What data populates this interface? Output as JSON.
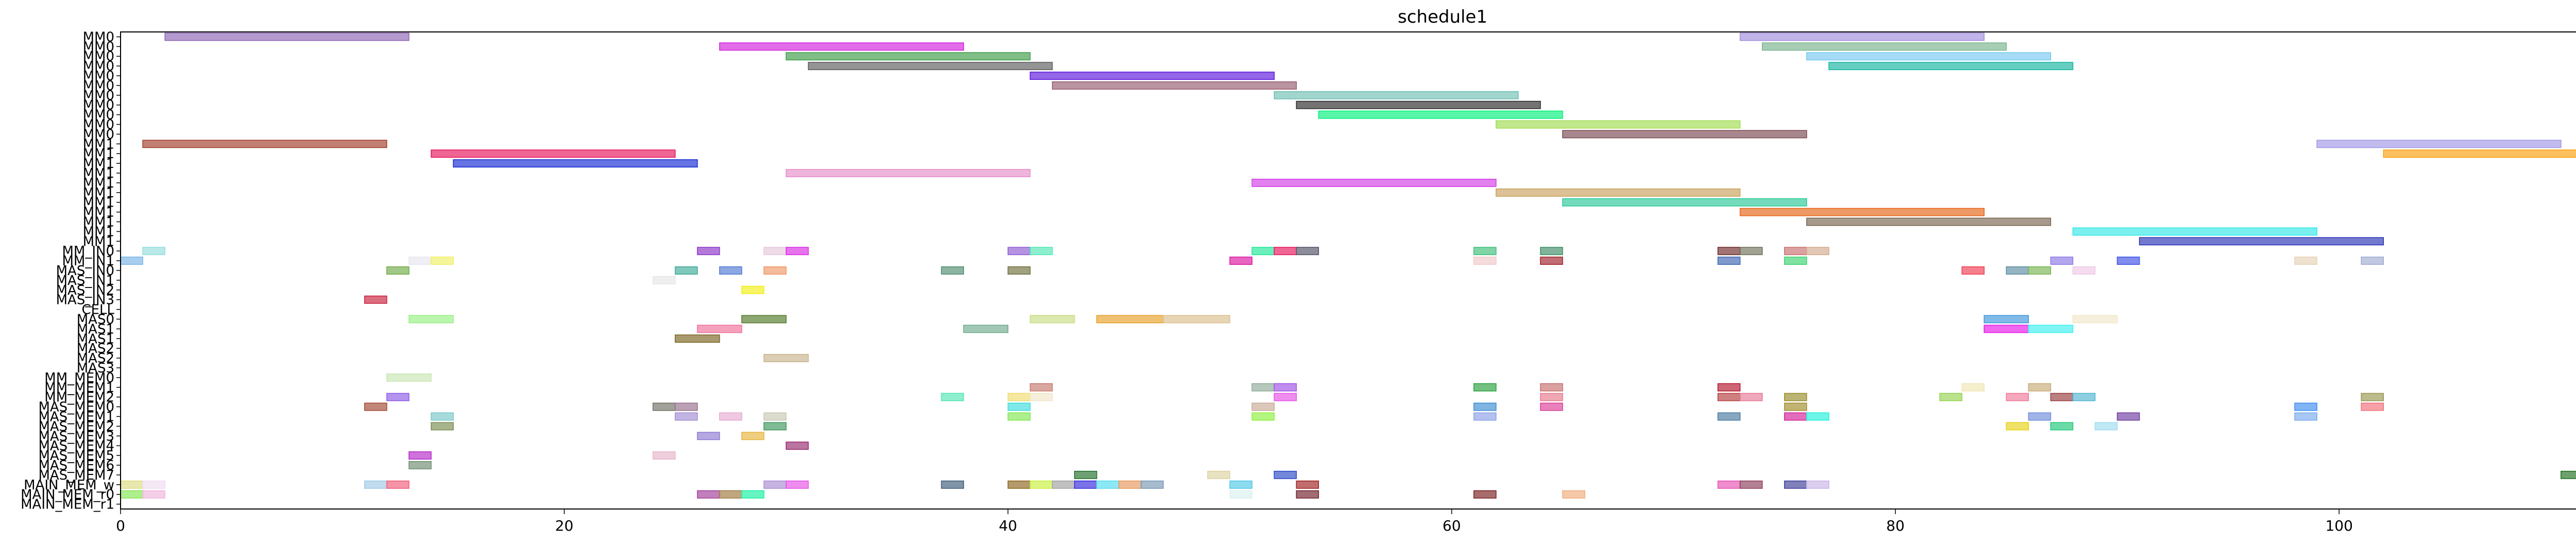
{
  "chart_data": {
    "type": "gantt",
    "title": "schedule1",
    "xlabel": "",
    "ylabel": "",
    "xlim": [
      0,
      113
    ],
    "xticks": [
      0,
      20,
      40,
      60,
      80,
      100
    ],
    "grid": false,
    "rows": [
      "MM0",
      "MM0",
      "MM0",
      "MM0",
      "MM0",
      "MM0",
      "MM0",
      "MM0",
      "MM0",
      "MM0",
      "MM0",
      "MM1",
      "MM1",
      "MM1",
      "MM1",
      "MM1",
      "MM1",
      "MM1",
      "MM1",
      "MM1",
      "MM1",
      "MM1",
      "MM_IN0",
      "MM_IN1",
      "MAS_IN0",
      "MAS_IN1",
      "MAS_IN2",
      "MAS_IN3",
      "CELL",
      "MAS0",
      "MAS1",
      "MAS1",
      "MAS2",
      "MAS2",
      "MAS3",
      "MM_MEM0",
      "MM_MEM1",
      "MM_MEM2",
      "MAS_MEM0",
      "MAS_MEM1",
      "MAS_MEM2",
      "MAS_MEM3",
      "MAS_MEM4",
      "MAS_MEM5",
      "MAS_MEM6",
      "MAS_MEM7",
      "MAIN_MEM_w",
      "MAIN_MEM_r0",
      "MAIN_MEM_r1"
    ],
    "tasks": [
      {
        "row": 0,
        "start": 2,
        "end": 13,
        "color": "#8c64b4"
      },
      {
        "row": 0,
        "start": 73,
        "end": 84,
        "color": "#a08cdc"
      },
      {
        "row": 1,
        "start": 27,
        "end": 38,
        "color": "#d21edc"
      },
      {
        "row": 1,
        "start": 74,
        "end": 85,
        "color": "#78b48c"
      },
      {
        "row": 2,
        "start": 30,
        "end": 41,
        "color": "#3c9b46"
      },
      {
        "row": 2,
        "start": 76,
        "end": 87,
        "color": "#78c8f0"
      },
      {
        "row": 3,
        "start": 31,
        "end": 42,
        "color": "#5a5a5a"
      },
      {
        "row": 3,
        "start": 77,
        "end": 88,
        "color": "#14b4a0"
      },
      {
        "row": 4,
        "start": 41,
        "end": 52,
        "color": "#5a14dc"
      },
      {
        "row": 5,
        "start": 42,
        "end": 53,
        "color": "#965a6e"
      },
      {
        "row": 6,
        "start": 52,
        "end": 63,
        "color": "#6ebeb4"
      },
      {
        "row": 7,
        "start": 53,
        "end": 64,
        "color": "#282828"
      },
      {
        "row": 8,
        "start": 54,
        "end": 65,
        "color": "#00f07a"
      },
      {
        "row": 9,
        "start": 62,
        "end": 73,
        "color": "#a0dc50"
      },
      {
        "row": 10,
        "start": 65,
        "end": 76,
        "color": "#784650"
      },
      {
        "row": 11,
        "start": 1,
        "end": 12,
        "color": "#a03c28"
      },
      {
        "row": 11,
        "start": 99,
        "end": 110,
        "color": "#a096e6"
      },
      {
        "row": 12,
        "start": 14,
        "end": 25,
        "color": "#e6145a"
      },
      {
        "row": 12,
        "start": 102,
        "end": 113,
        "color": "#fa9e0a"
      },
      {
        "row": 13,
        "start": 15,
        "end": 26,
        "color": "#1428d2"
      },
      {
        "row": 14,
        "start": 30,
        "end": 41,
        "color": "#e68cc8"
      },
      {
        "row": 15,
        "start": 51,
        "end": 62,
        "color": "#d23ce6"
      },
      {
        "row": 16,
        "start": 62,
        "end": 73,
        "color": "#c8a05a"
      },
      {
        "row": 17,
        "start": 65,
        "end": 76,
        "color": "#28c896"
      },
      {
        "row": 18,
        "start": 73,
        "end": 84,
        "color": "#e66414"
      },
      {
        "row": 19,
        "start": 76,
        "end": 87,
        "color": "#786450"
      },
      {
        "row": 20,
        "start": 88,
        "end": 99,
        "color": "#32e6e6"
      },
      {
        "row": 21,
        "start": 91,
        "end": 102,
        "color": "#2832b4"
      },
      {
        "row": 22,
        "start": 1,
        "end": 2,
        "color": "#96dcdc"
      },
      {
        "row": 22,
        "start": 26,
        "end": 27,
        "color": "#8c32c8"
      },
      {
        "row": 22,
        "start": 29,
        "end": 30,
        "color": "#e6c8dc"
      },
      {
        "row": 22,
        "start": 30,
        "end": 31,
        "color": "#dc28e6"
      },
      {
        "row": 22,
        "start": 40,
        "end": 41,
        "color": "#8c5ad2"
      },
      {
        "row": 22,
        "start": 41,
        "end": 42,
        "color": "#50e6b4"
      },
      {
        "row": 22,
        "start": 51,
        "end": 52,
        "color": "#1ee696"
      },
      {
        "row": 22,
        "start": 52,
        "end": 53,
        "color": "#e6145a"
      },
      {
        "row": 22,
        "start": 53,
        "end": 54,
        "color": "#505064"
      },
      {
        "row": 22,
        "start": 61,
        "end": 62,
        "color": "#3cbe78"
      },
      {
        "row": 22,
        "start": 64,
        "end": 65,
        "color": "#3c8c64"
      },
      {
        "row": 22,
        "start": 72,
        "end": 73,
        "color": "#6e2828"
      },
      {
        "row": 22,
        "start": 73,
        "end": 74,
        "color": "#6e6e5a"
      },
      {
        "row": 22,
        "start": 75,
        "end": 76,
        "color": "#c86e6e"
      },
      {
        "row": 22,
        "start": 76,
        "end": 77,
        "color": "#d2aa8c"
      },
      {
        "row": 23,
        "start": 0,
        "end": 1,
        "color": "#78b4e6"
      },
      {
        "row": 23,
        "start": 13,
        "end": 14,
        "color": "#e6e6f0"
      },
      {
        "row": 23,
        "start": 14,
        "end": 15,
        "color": "#f0f064"
      },
      {
        "row": 23,
        "start": 50,
        "end": 51,
        "color": "#dc14a0"
      },
      {
        "row": 23,
        "start": 61,
        "end": 62,
        "color": "#f0c8c8"
      },
      {
        "row": 23,
        "start": 64,
        "end": 65,
        "color": "#a01e28"
      },
      {
        "row": 23,
        "start": 72,
        "end": 73,
        "color": "#3c64b4"
      },
      {
        "row": 23,
        "start": 75,
        "end": 76,
        "color": "#3cd26e"
      },
      {
        "row": 23,
        "start": 87,
        "end": 88,
        "color": "#8c78e6"
      },
      {
        "row": 23,
        "start": 90,
        "end": 91,
        "color": "#3c50e6"
      },
      {
        "row": 23,
        "start": 98,
        "end": 99,
        "color": "#e6d2b4"
      },
      {
        "row": 23,
        "start": 101,
        "end": 102,
        "color": "#a0aad2"
      },
      {
        "row": 24,
        "start": 12,
        "end": 13,
        "color": "#6eaa46"
      },
      {
        "row": 24,
        "start": 25,
        "end": 26,
        "color": "#3caa96"
      },
      {
        "row": 24,
        "start": 27,
        "end": 28,
        "color": "#5078d2"
      },
      {
        "row": 24,
        "start": 29,
        "end": 30,
        "color": "#f09664"
      },
      {
        "row": 24,
        "start": 37,
        "end": 38,
        "color": "#508c6e"
      },
      {
        "row": 24,
        "start": 40,
        "end": 41,
        "color": "#6e6e3c"
      },
      {
        "row": 24,
        "start": 83,
        "end": 84,
        "color": "#f03c50"
      },
      {
        "row": 24,
        "start": 85,
        "end": 86,
        "color": "#5a8ca0"
      },
      {
        "row": 24,
        "start": 86,
        "end": 87,
        "color": "#78b450"
      },
      {
        "row": 24,
        "start": 88,
        "end": 89,
        "color": "#f0c8e6"
      },
      {
        "row": 25,
        "start": 24,
        "end": 25,
        "color": "#e6e6e6"
      },
      {
        "row": 26,
        "start": 28,
        "end": 29,
        "color": "#f0f014"
      },
      {
        "row": 27,
        "start": 11,
        "end": 12,
        "color": "#c81e3c"
      },
      {
        "row": 29,
        "start": 13,
        "end": 15,
        "color": "#96f082"
      },
      {
        "row": 29,
        "start": 28,
        "end": 30,
        "color": "#507828"
      },
      {
        "row": 29,
        "start": 41,
        "end": 43,
        "color": "#c8dc82"
      },
      {
        "row": 29,
        "start": 44,
        "end": 47,
        "color": "#e6a028"
      },
      {
        "row": 29,
        "start": 47,
        "end": 50,
        "color": "#dcbe8c"
      },
      {
        "row": 29,
        "start": 84,
        "end": 86,
        "color": "#3c96dc"
      },
      {
        "row": 29,
        "start": 88,
        "end": 90,
        "color": "#f0e6c8"
      },
      {
        "row": 30,
        "start": 26,
        "end": 28,
        "color": "#f06e96"
      },
      {
        "row": 30,
        "start": 38,
        "end": 40,
        "color": "#6eaa8c"
      },
      {
        "row": 30,
        "start": 84,
        "end": 86,
        "color": "#e614e6"
      },
      {
        "row": 30,
        "start": 86,
        "end": 88,
        "color": "#3cf0f0"
      },
      {
        "row": 31,
        "start": 25,
        "end": 27,
        "color": "#7a641e"
      },
      {
        "row": 33,
        "start": 29,
        "end": 31,
        "color": "#c8b48c"
      },
      {
        "row": 35,
        "start": 12,
        "end": 14,
        "color": "#c8e6b4"
      },
      {
        "row": 36,
        "start": 41,
        "end": 42,
        "color": "#c8786e"
      },
      {
        "row": 36,
        "start": 51,
        "end": 52,
        "color": "#8caa96"
      },
      {
        "row": 36,
        "start": 52,
        "end": 53,
        "color": "#a050e6"
      },
      {
        "row": 36,
        "start": 61,
        "end": 62,
        "color": "#28a03c"
      },
      {
        "row": 36,
        "start": 64,
        "end": 65,
        "color": "#c86e6e"
      },
      {
        "row": 36,
        "start": 72,
        "end": 73,
        "color": "#b4142d"
      },
      {
        "row": 36,
        "start": 83,
        "end": 84,
        "color": "#f0e6b4"
      },
      {
        "row": 36,
        "start": 86,
        "end": 87,
        "color": "#c8aa78"
      },
      {
        "row": 37,
        "start": 12,
        "end": 13,
        "color": "#8c5ae6"
      },
      {
        "row": 37,
        "start": 37,
        "end": 38,
        "color": "#50e6b4"
      },
      {
        "row": 37,
        "start": 40,
        "end": 41,
        "color": "#f0dc6e"
      },
      {
        "row": 37,
        "start": 41,
        "end": 42,
        "color": "#f0e6c8"
      },
      {
        "row": 37,
        "start": 52,
        "end": 53,
        "color": "#e650e6"
      },
      {
        "row": 37,
        "start": 64,
        "end": 65,
        "color": "#e6788c"
      },
      {
        "row": 37,
        "start": 72,
        "end": 73,
        "color": "#b43c3c"
      },
      {
        "row": 37,
        "start": 73,
        "end": 74,
        "color": "#e67896"
      },
      {
        "row": 37,
        "start": 75,
        "end": 76,
        "color": "#968c28"
      },
      {
        "row": 37,
        "start": 82,
        "end": 83,
        "color": "#96d250"
      },
      {
        "row": 37,
        "start": 85,
        "end": 86,
        "color": "#f07896"
      },
      {
        "row": 37,
        "start": 87,
        "end": 88,
        "color": "#963c3c"
      },
      {
        "row": 37,
        "start": 88,
        "end": 89,
        "color": "#50b4d2"
      },
      {
        "row": 37,
        "start": 101,
        "end": 102,
        "color": "#969650"
      },
      {
        "row": 38,
        "start": 11,
        "end": 12,
        "color": "#a04632"
      },
      {
        "row": 38,
        "start": 24,
        "end": 25,
        "color": "#6e6e64"
      },
      {
        "row": 38,
        "start": 25,
        "end": 26,
        "color": "#966e8c"
      },
      {
        "row": 38,
        "start": 40,
        "end": 41,
        "color": "#3cdcdc"
      },
      {
        "row": 38,
        "start": 51,
        "end": 52,
        "color": "#c8aa96"
      },
      {
        "row": 38,
        "start": 61,
        "end": 62,
        "color": "#3c8cd2"
      },
      {
        "row": 38,
        "start": 64,
        "end": 65,
        "color": "#dc3c96"
      },
      {
        "row": 38,
        "start": 75,
        "end": 76,
        "color": "#a08c28"
      },
      {
        "row": 38,
        "start": 98,
        "end": 99,
        "color": "#3c8cf0"
      },
      {
        "row": 38,
        "start": 101,
        "end": 102,
        "color": "#f06e78"
      },
      {
        "row": 39,
        "start": 14,
        "end": 15,
        "color": "#78c8c8"
      },
      {
        "row": 39,
        "start": 25,
        "end": 26,
        "color": "#a08cd2"
      },
      {
        "row": 39,
        "start": 27,
        "end": 28,
        "color": "#e6aad2"
      },
      {
        "row": 39,
        "start": 29,
        "end": 30,
        "color": "#c8c8b4"
      },
      {
        "row": 39,
        "start": 40,
        "end": 41,
        "color": "#82e650"
      },
      {
        "row": 39,
        "start": 51,
        "end": 52,
        "color": "#8cf03c"
      },
      {
        "row": 39,
        "start": 61,
        "end": 62,
        "color": "#8ca0e6"
      },
      {
        "row": 39,
        "start": 72,
        "end": 73,
        "color": "#4678a0"
      },
      {
        "row": 39,
        "start": 75,
        "end": 76,
        "color": "#d21e96"
      },
      {
        "row": 39,
        "start": 76,
        "end": 77,
        "color": "#1ef0dc"
      },
      {
        "row": 39,
        "start": 86,
        "end": 87,
        "color": "#6e8cdc"
      },
      {
        "row": 39,
        "start": 90,
        "end": 91,
        "color": "#6e3ca0"
      },
      {
        "row": 39,
        "start": 98,
        "end": 99,
        "color": "#78aaf0"
      },
      {
        "row": 40,
        "start": 14,
        "end": 15,
        "color": "#788c50"
      },
      {
        "row": 40,
        "start": 29,
        "end": 30,
        "color": "#3c965a"
      },
      {
        "row": 40,
        "start": 85,
        "end": 86,
        "color": "#e6d214"
      },
      {
        "row": 40,
        "start": 87,
        "end": 88,
        "color": "#1ec878"
      },
      {
        "row": 40,
        "start": 89,
        "end": 90,
        "color": "#a0dcf0"
      },
      {
        "row": 41,
        "start": 26,
        "end": 27,
        "color": "#8c78d2"
      },
      {
        "row": 41,
        "start": 28,
        "end": 29,
        "color": "#e6b43c"
      },
      {
        "row": 42,
        "start": 30,
        "end": 31,
        "color": "#96286e"
      },
      {
        "row": 43,
        "start": 13,
        "end": 14,
        "color": "#b428c8"
      },
      {
        "row": 43,
        "start": 24,
        "end": 25,
        "color": "#e6b4c8"
      },
      {
        "row": 44,
        "start": 13,
        "end": 14,
        "color": "#6e8c6e"
      },
      {
        "row": 45,
        "start": 43,
        "end": 44,
        "color": "#1e6e28"
      },
      {
        "row": 45,
        "start": 49,
        "end": 50,
        "color": "#dcd2a0"
      },
      {
        "row": 45,
        "start": 52,
        "end": 53,
        "color": "#2846c8"
      },
      {
        "row": 45,
        "start": 110,
        "end": 111,
        "color": "#1e6e1e"
      },
      {
        "row": 45,
        "start": 113,
        "end": 114,
        "color": "#50c83c"
      },
      {
        "row": 46,
        "start": 0,
        "end": 1,
        "color": "#dcdc82"
      },
      {
        "row": 46,
        "start": 1,
        "end": 2,
        "color": "#f0dcf0"
      },
      {
        "row": 46,
        "start": 11,
        "end": 12,
        "color": "#a0c8e6"
      },
      {
        "row": 46,
        "start": 12,
        "end": 13,
        "color": "#f05a78"
      },
      {
        "row": 46,
        "start": 29,
        "end": 30,
        "color": "#aa8cd2"
      },
      {
        "row": 46,
        "start": 30,
        "end": 31,
        "color": "#e650e6"
      },
      {
        "row": 46,
        "start": 37,
        "end": 38,
        "color": "#3c5a78"
      },
      {
        "row": 46,
        "start": 40,
        "end": 41,
        "color": "#8c641e"
      },
      {
        "row": 46,
        "start": 41,
        "end": 42,
        "color": "#c8f03c"
      },
      {
        "row": 46,
        "start": 42,
        "end": 43,
        "color": "#a0a0a0"
      },
      {
        "row": 46,
        "start": 43,
        "end": 44,
        "color": "#3228dc"
      },
      {
        "row": 46,
        "start": 44,
        "end": 45,
        "color": "#50dcf0"
      },
      {
        "row": 46,
        "start": 45,
        "end": 46,
        "color": "#e6965a"
      },
      {
        "row": 46,
        "start": 46,
        "end": 47,
        "color": "#7896b4"
      },
      {
        "row": 46,
        "start": 50,
        "end": 51,
        "color": "#50c8e6"
      },
      {
        "row": 46,
        "start": 53,
        "end": 54,
        "color": "#a01e1e"
      },
      {
        "row": 46,
        "start": 72,
        "end": 73,
        "color": "#e650b4"
      },
      {
        "row": 46,
        "start": 73,
        "end": 74,
        "color": "#8c3c5a"
      },
      {
        "row": 46,
        "start": 75,
        "end": 76,
        "color": "#3c3c96"
      },
      {
        "row": 46,
        "start": 76,
        "end": 77,
        "color": "#c8b4e6"
      },
      {
        "row": 47,
        "start": 0,
        "end": 1,
        "color": "#82e650"
      },
      {
        "row": 47,
        "start": 1,
        "end": 2,
        "color": "#f0b4dc"
      },
      {
        "row": 47,
        "start": 26,
        "end": 27,
        "color": "#a03c96"
      },
      {
        "row": 47,
        "start": 27,
        "end": 28,
        "color": "#a0783c"
      },
      {
        "row": 47,
        "start": 28,
        "end": 29,
        "color": "#14f0a0"
      },
      {
        "row": 47,
        "start": 50,
        "end": 51,
        "color": "#dcf0f0"
      },
      {
        "row": 47,
        "start": 53,
        "end": 54,
        "color": "#6e1e28"
      },
      {
        "row": 47,
        "start": 61,
        "end": 62,
        "color": "#781e1e"
      },
      {
        "row": 47,
        "start": 65,
        "end": 66,
        "color": "#f0aa78"
      }
    ]
  }
}
